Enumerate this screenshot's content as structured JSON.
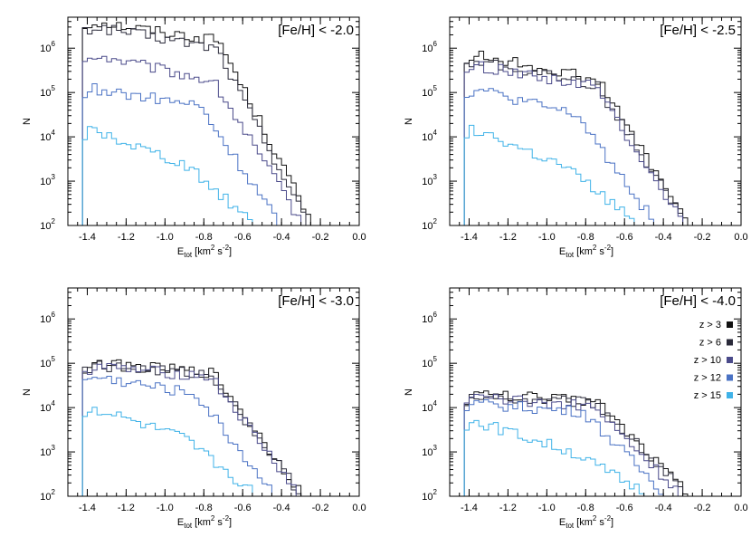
{
  "chart_data": [
    {
      "type": "histogram",
      "title": "[Fe/H] < -2.0",
      "xlabel": "E_tot [km² s⁻²]",
      "xlabel_main": "E",
      "xlabel_sub": "tot",
      "xlabel_unit_a": " [km",
      "xlabel_unit_sup1": "2",
      "xlabel_unit_b": " s",
      "xlabel_unit_sup2": "-2",
      "xlabel_unit_c": "]",
      "ylabel": "N",
      "xlim": [
        -1.5,
        0.0
      ],
      "ylim": [
        100,
        5000000
      ],
      "yscale": "log",
      "xticks": [
        "-1.4",
        "-1.2",
        "-1.0",
        "-0.8",
        "-0.6",
        "-0.4",
        "-0.2",
        "0.0"
      ],
      "yticks": [
        {
          "base": "10",
          "exp": "2"
        },
        {
          "base": "10",
          "exp": "3"
        },
        {
          "base": "10",
          "exp": "4"
        },
        {
          "base": "10",
          "exp": "5"
        },
        {
          "base": "10",
          "exp": "6"
        }
      ],
      "series": [
        {
          "name": "z > 3",
          "color": "#111111",
          "peak": 4000000,
          "plateau": 1500000,
          "start": -1.43,
          "end": -0.25
        },
        {
          "name": "z > 6",
          "color": "#2a2a3a",
          "peak": 3000000,
          "plateau": 1000000,
          "start": -1.43,
          "end": -0.27
        },
        {
          "name": "z > 10",
          "color": "#4a4a8a",
          "peak": 700000,
          "plateau": 180000,
          "start": -1.43,
          "end": -0.3
        },
        {
          "name": "z > 12",
          "color": "#4a72c4",
          "peak": 120000,
          "plateau": 50000,
          "start": -1.43,
          "end": -0.42
        },
        {
          "name": "z > 15",
          "color": "#3fb2e8",
          "peak": 15000,
          "plateau": 2500,
          "start": -1.43,
          "end": -0.55
        }
      ]
    },
    {
      "type": "histogram",
      "title": "[Fe/H] < -2.5",
      "xlabel": "E_tot [km² s⁻²]",
      "xlabel_main": "E",
      "xlabel_sub": "tot",
      "xlabel_unit_a": " [km",
      "xlabel_unit_sup1": "2",
      "xlabel_unit_b": " s",
      "xlabel_unit_sup2": "-2",
      "xlabel_unit_c": "]",
      "ylabel": "N",
      "xlim": [
        -1.5,
        0.0
      ],
      "ylim": [
        100,
        5000000
      ],
      "yscale": "log",
      "xticks": [
        "-1.4",
        "-1.2",
        "-1.0",
        "-0.8",
        "-0.6",
        "-0.4",
        "-0.2",
        "0.0"
      ],
      "yticks": [
        {
          "base": "10",
          "exp": "2"
        },
        {
          "base": "10",
          "exp": "3"
        },
        {
          "base": "10",
          "exp": "4"
        },
        {
          "base": "10",
          "exp": "5"
        },
        {
          "base": "10",
          "exp": "6"
        }
      ],
      "series": [
        {
          "name": "z > 3",
          "color": "#111111",
          "peak": 700000,
          "plateau": 200000,
          "start": -1.43,
          "end": -0.28
        },
        {
          "name": "z > 6",
          "color": "#2a2a3a",
          "peak": 500000,
          "plateau": 150000,
          "start": -1.43,
          "end": -0.29
        },
        {
          "name": "z > 10",
          "color": "#4a4a8a",
          "peak": 400000,
          "plateau": 140000,
          "start": -1.43,
          "end": -0.3
        },
        {
          "name": "z > 12",
          "color": "#4a72c4",
          "peak": 120000,
          "plateau": 30000,
          "start": -1.43,
          "end": -0.45
        },
        {
          "name": "z > 15",
          "color": "#3fb2e8",
          "peak": 15000,
          "plateau": 2000,
          "start": -1.43,
          "end": -0.55
        }
      ]
    },
    {
      "type": "histogram",
      "title": "[Fe/H] < -3.0",
      "xlabel": "E_tot [km² s⁻²]",
      "xlabel_main": "E",
      "xlabel_sub": "tot",
      "xlabel_unit_a": " [km",
      "xlabel_unit_sup1": "2",
      "xlabel_unit_b": " s",
      "xlabel_unit_sup2": "-2",
      "xlabel_unit_c": "]",
      "ylabel": "N",
      "xlim": [
        -1.5,
        0.0
      ],
      "ylim": [
        100,
        5000000
      ],
      "yscale": "log",
      "xticks": [
        "-1.4",
        "-1.2",
        "-1.0",
        "-0.8",
        "-0.6",
        "-0.4",
        "-0.2",
        "0.0"
      ],
      "yticks": [
        {
          "base": "10",
          "exp": "2"
        },
        {
          "base": "10",
          "exp": "3"
        },
        {
          "base": "10",
          "exp": "4"
        },
        {
          "base": "10",
          "exp": "5"
        },
        {
          "base": "10",
          "exp": "6"
        }
      ],
      "series": [
        {
          "name": "z > 3",
          "color": "#111111",
          "peak": 100000,
          "plateau": 60000,
          "start": -1.43,
          "end": -0.3
        },
        {
          "name": "z > 6",
          "color": "#2a2a3a",
          "peak": 90000,
          "plateau": 55000,
          "start": -1.43,
          "end": -0.31
        },
        {
          "name": "z > 10",
          "color": "#4a4a8a",
          "peak": 85000,
          "plateau": 50000,
          "start": -1.43,
          "end": -0.32
        },
        {
          "name": "z > 12",
          "color": "#4a72c4",
          "peak": 50000,
          "plateau": 20000,
          "start": -1.43,
          "end": -0.45
        },
        {
          "name": "z > 15",
          "color": "#3fb2e8",
          "peak": 10000,
          "plateau": 2000,
          "start": -1.43,
          "end": -0.55
        }
      ]
    },
    {
      "type": "histogram",
      "title": "[Fe/H] < -4.0",
      "xlabel": "E_tot [km² s⁻²]",
      "xlabel_main": "E",
      "xlabel_sub": "tot",
      "xlabel_unit_a": " [km",
      "xlabel_unit_sup1": "2",
      "xlabel_unit_b": " s",
      "xlabel_unit_sup2": "-2",
      "xlabel_unit_c": "]",
      "ylabel": "N",
      "xlim": [
        -1.5,
        0.0
      ],
      "ylim": [
        100,
        5000000
      ],
      "yscale": "log",
      "xticks": [
        "-1.4",
        "-1.2",
        "-1.0",
        "-0.8",
        "-0.6",
        "-0.4",
        "-0.2",
        "0.0"
      ],
      "yticks": [
        {
          "base": "10",
          "exp": "2"
        },
        {
          "base": "10",
          "exp": "3"
        },
        {
          "base": "10",
          "exp": "4"
        },
        {
          "base": "10",
          "exp": "5"
        },
        {
          "base": "10",
          "exp": "6"
        }
      ],
      "legend": {
        "placement": "right"
      },
      "series": [
        {
          "name": "z > 3",
          "color": "#111111",
          "peak": 20000,
          "plateau": 14000,
          "start": -1.43,
          "end": -0.28
        },
        {
          "name": "z > 6",
          "color": "#2a2a3a",
          "peak": 18000,
          "plateau": 13000,
          "start": -1.43,
          "end": -0.29
        },
        {
          "name": "z > 10",
          "color": "#4a4a8a",
          "peak": 16000,
          "plateau": 11000,
          "start": -1.43,
          "end": -0.32
        },
        {
          "name": "z > 12",
          "color": "#4a72c4",
          "peak": 12000,
          "plateau": 8000,
          "start": -1.43,
          "end": -0.4
        },
        {
          "name": "z > 15",
          "color": "#3fb2e8",
          "peak": 5000,
          "plateau": 1000,
          "start": -1.43,
          "end": -0.5
        }
      ]
    }
  ]
}
